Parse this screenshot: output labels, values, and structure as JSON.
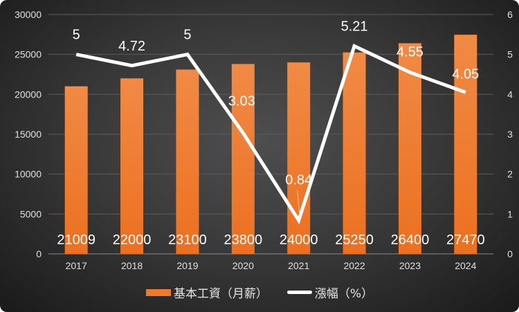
{
  "chart_data": {
    "type": "bar+line",
    "categories": [
      "2017",
      "2018",
      "2019",
      "2020",
      "2021",
      "2022",
      "2023",
      "2024"
    ],
    "series": [
      {
        "name": "基本工資（月薪）",
        "type": "bar",
        "axis": "left",
        "values": [
          21009,
          22000,
          23100,
          23800,
          24000,
          25250,
          26400,
          27470
        ],
        "color": "#ef7a2a"
      },
      {
        "name": "漲幅（%）",
        "type": "line",
        "axis": "right",
        "values": [
          5,
          4.72,
          5,
          3.03,
          0.84,
          5.21,
          4.55,
          4.05
        ],
        "color": "#ffffff"
      }
    ],
    "left_axis": {
      "ylim": [
        0,
        30000
      ],
      "ticks": [
        "0",
        "5000",
        "10000",
        "15000",
        "20000",
        "25000",
        "30000"
      ]
    },
    "right_axis": {
      "ylim": [
        0,
        6
      ],
      "ticks": [
        "0",
        "1",
        "2",
        "3",
        "4",
        "5",
        "6"
      ]
    },
    "grid": true,
    "legend": "bottom"
  }
}
